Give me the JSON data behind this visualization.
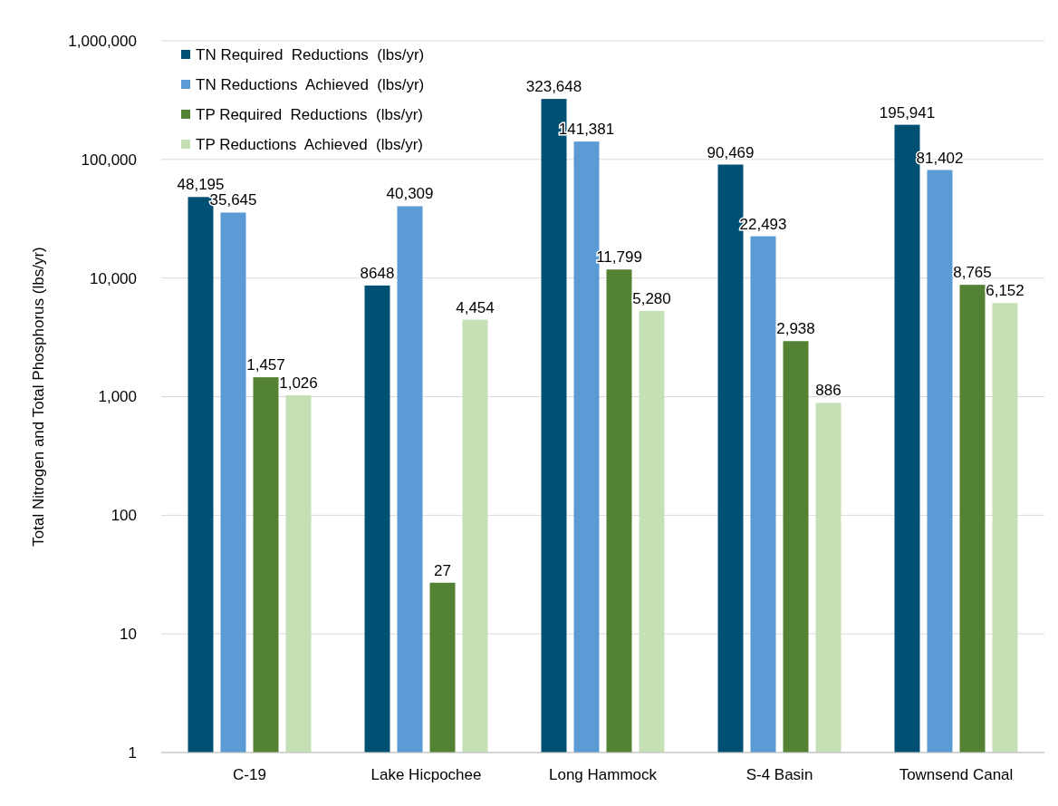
{
  "chart_data": {
    "type": "bar",
    "ylabel": "Total Nitrogen and Total Phosphorus (lbs/yr)",
    "categories": [
      "C-19",
      "Lake Hicpochee",
      "Long Hammock",
      "S-4 Basin",
      "Townsend Canal"
    ],
    "series": [
      {
        "name": "TN Required  Reductions  (lbs/yr)",
        "color": "#005073",
        "values": [
          48195,
          8648,
          323648,
          90469,
          195941
        ],
        "value_labels": [
          "48,195",
          "8648",
          "323,648",
          "90,469",
          "195,941"
        ]
      },
      {
        "name": "TN Reductions  Achieved  (lbs/yr)",
        "color": "#5b9bd5",
        "values": [
          35645,
          40309,
          141381,
          22493,
          81402
        ],
        "value_labels": [
          "35,645",
          "40,309",
          "141,381",
          "22,493",
          "81,402"
        ]
      },
      {
        "name": "TP Required  Reductions  (lbs/yr)",
        "color": "#548235",
        "values": [
          1457,
          27,
          11799,
          2938,
          8765
        ],
        "value_labels": [
          "1,457",
          "27",
          "11,799",
          "2,938",
          "8,765"
        ]
      },
      {
        "name": "TP Reductions  Achieved  (lbs/yr)",
        "color": "#c5e0b4",
        "values": [
          1026,
          4454,
          5280,
          886,
          6152
        ],
        "value_labels": [
          "1,026",
          "4,454",
          "5,280",
          "886",
          "6,152"
        ]
      }
    ],
    "log": true,
    "ylim": [
      1,
      1000000
    ],
    "yticks": [
      1,
      10,
      100,
      {
        "value": 1000,
        "label": "1,000"
      },
      {
        "value": 10000,
        "label": "10,000"
      },
      {
        "value": 100000,
        "label": "100,000"
      },
      {
        "value": 1000000,
        "label": "1,000,000"
      }
    ],
    "grid": "y",
    "legend": "top left"
  }
}
